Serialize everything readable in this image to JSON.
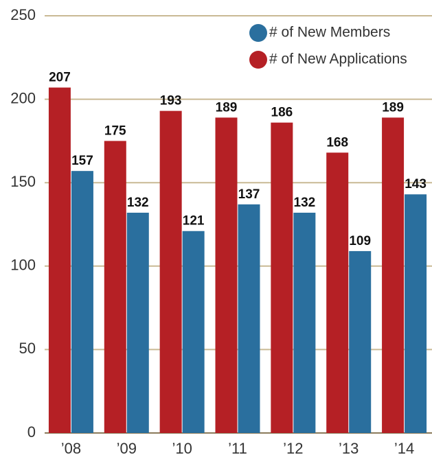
{
  "chart_data": {
    "type": "bar",
    "categories": [
      "’08",
      "’09",
      "’10",
      "’11",
      "’12",
      "’13",
      "’14"
    ],
    "series": [
      {
        "name": "# of New Applications",
        "color": "#b52025",
        "values": [
          207,
          175,
          193,
          189,
          186,
          168,
          189
        ]
      },
      {
        "name": "# of New Members",
        "color": "#2a6f9e",
        "values": [
          157,
          132,
          121,
          137,
          132,
          109,
          143
        ]
      }
    ],
    "ylim": [
      0,
      250
    ],
    "yticks": [
      0,
      50,
      100,
      150,
      200,
      250
    ],
    "grid": true,
    "legend": "upper right"
  }
}
